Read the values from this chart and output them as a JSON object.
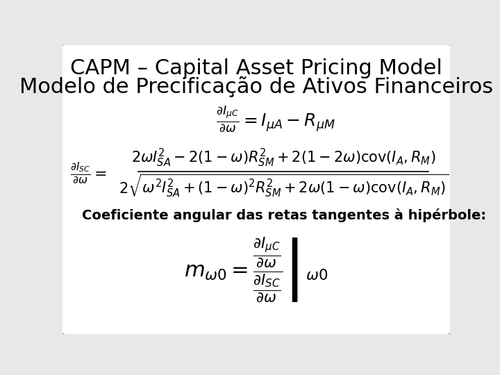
{
  "title_line1": "CAPM – Capital Asset Pricing Model",
  "title_line2": "Modelo de Precificação de Ativos Financeiros",
  "bg_color": "#e8e8e8",
  "border_color": "#888888",
  "text_color": "#000000",
  "title_fontsize": 22,
  "label_fontsize": 14,
  "eq1_fontsize": 18,
  "eq2_fontsize": 15,
  "eq3_fontsize": 22
}
